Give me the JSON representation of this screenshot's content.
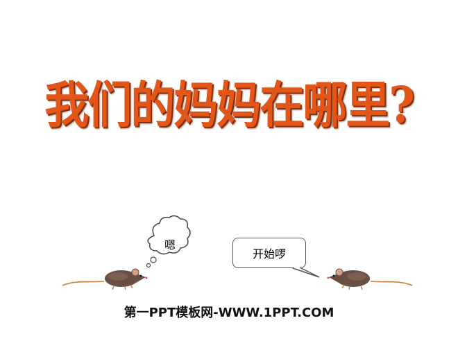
{
  "slide": {
    "title": "我们的妈妈在哪里?",
    "left_mouse": {
      "thought_text": "嗯"
    },
    "right_mouse": {
      "speech_text": "开始啰"
    },
    "watermark": "第一PPT模板网-WWW.1PPT.COM"
  },
  "colors": {
    "title": "#e2561a",
    "title_shadow": "#8a2e08",
    "background": "#ffffff"
  },
  "icons": [
    "mouse-icon",
    "thought-bubble",
    "speech-bubble"
  ]
}
